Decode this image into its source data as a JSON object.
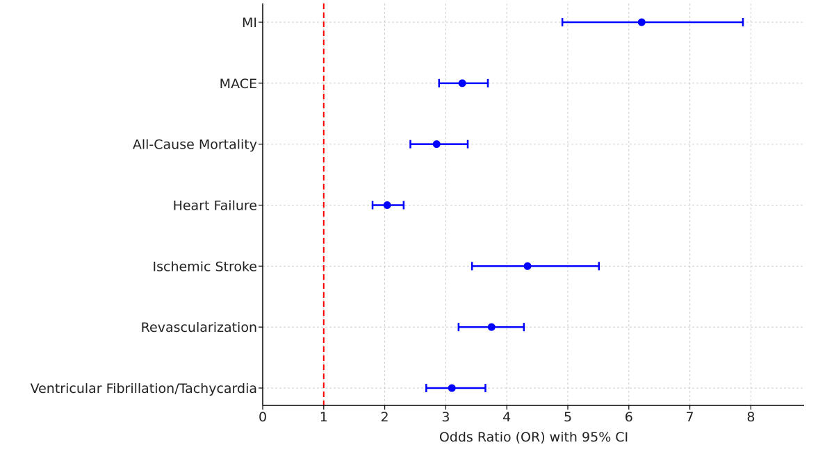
{
  "chart_data": {
    "type": "forest",
    "title": "",
    "xlabel": "Odds Ratio (OR) with 95% CI",
    "ylabel": "",
    "xlim": [
      0,
      8.9
    ],
    "xticks": [
      "0",
      "1",
      "2",
      "3",
      "4",
      "5",
      "6",
      "7",
      "8"
    ],
    "reference_line": 1,
    "grid": true,
    "colors": {
      "point": "#0000ff",
      "reference": "#ff0000",
      "grid": "#cccccc",
      "axis": "#000000"
    },
    "categories": [
      "MI",
      "MACE",
      "All-Cause Mortality",
      "Heart Failure",
      "Ischemic Stroke",
      "Revascularization",
      "Ventricular Fibrillation/Tachycardia"
    ],
    "series": [
      {
        "name": "Odds Ratio",
        "or": [
          6.21,
          3.27,
          2.85,
          2.04,
          4.34,
          3.75,
          3.1
        ],
        "lower": [
          4.91,
          2.89,
          2.42,
          1.8,
          3.43,
          3.21,
          2.68
        ],
        "upper": [
          7.87,
          3.69,
          3.36,
          2.31,
          5.51,
          4.28,
          3.65
        ]
      }
    ]
  }
}
